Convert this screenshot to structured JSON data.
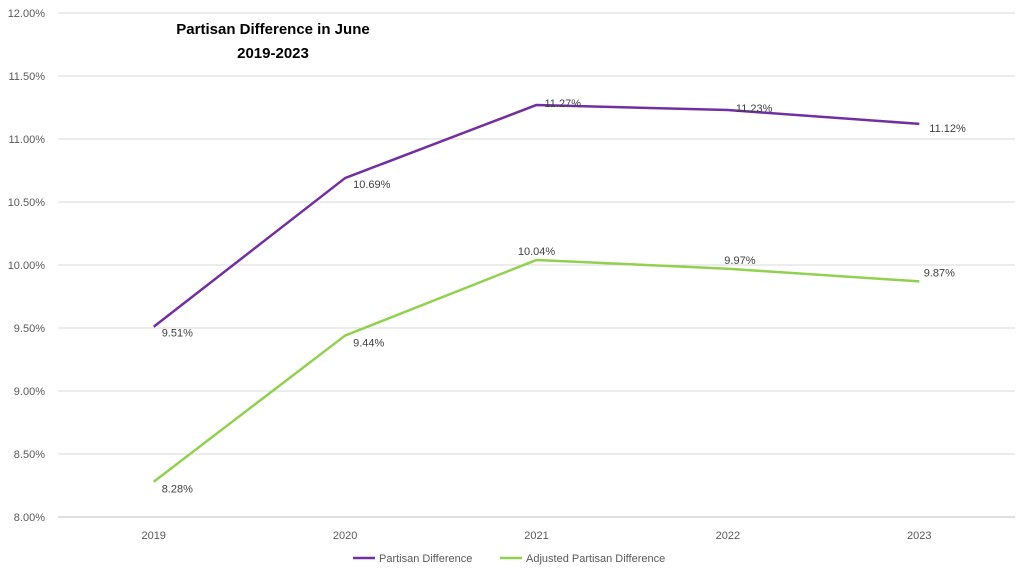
{
  "chart_data": {
    "type": "line",
    "title": [
      "Partisan Difference in June",
      "2019-2023"
    ],
    "categories": [
      "2019",
      "2020",
      "2021",
      "2022",
      "2023"
    ],
    "ylim": [
      8.0,
      12.0
    ],
    "yticks": [
      "8.00%",
      "8.50%",
      "9.00%",
      "9.50%",
      "10.00%",
      "10.50%",
      "11.00%",
      "11.50%",
      "12.00%"
    ],
    "grid": true,
    "legend_position": "bottom",
    "series": [
      {
        "name": "Partisan Difference",
        "color": "#7030A0",
        "values": [
          9.51,
          10.69,
          11.27,
          11.23,
          11.12
        ],
        "labels": [
          "9.51%",
          "10.69%",
          "11.27%",
          "11.23%",
          "11.12%"
        ]
      },
      {
        "name": "Adjusted Partisan Difference",
        "color": "#92D050",
        "values": [
          8.28,
          9.44,
          10.04,
          9.97,
          9.87
        ],
        "labels": [
          "8.28%",
          "9.44%",
          "10.04%",
          "9.97%",
          "9.87%"
        ]
      }
    ]
  }
}
